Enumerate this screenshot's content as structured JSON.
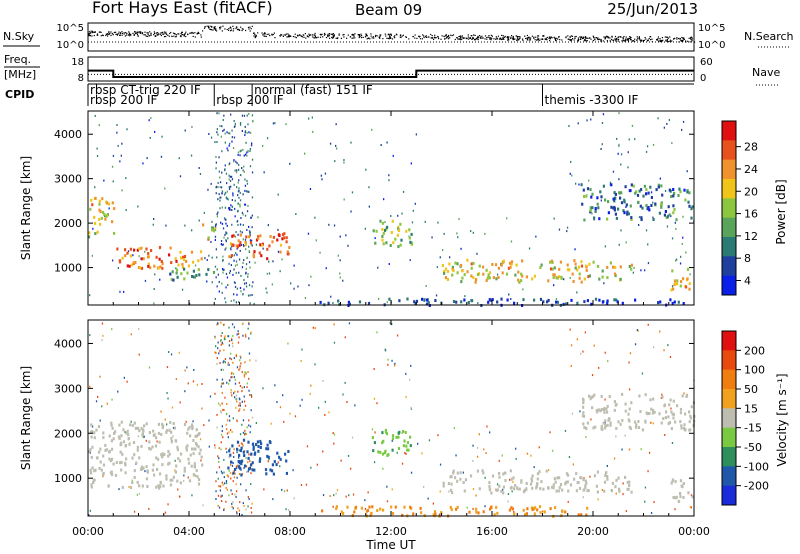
{
  "header": {
    "station": "Fort Hays East (fitACF)",
    "beam": "Beam 09",
    "date": "25/Jun/2013"
  },
  "summary_panel": {
    "nsky_label": "N.Sky",
    "nsky_ticks": [
      "10^5",
      "10^0"
    ],
    "nsearch_label": "N.Search",
    "nsearch_ticks": [
      "10^5",
      "10^0"
    ],
    "freq_label": "Freq.",
    "freq_unit": "[MHz]",
    "freq_ticks": [
      "18",
      "8"
    ],
    "nave_label": "Nave",
    "nave_ticks": [
      "60",
      "0"
    ],
    "cpid_label": "CPID",
    "cpid_entries": [
      {
        "t": 0.0,
        "row": 0,
        "text": "rbsp CT-trig 220 IF"
      },
      {
        "t": 0.0,
        "row": 1,
        "text": "rbsp 200 IF"
      },
      {
        "t": 5.0,
        "row": 1,
        "text": "rbsp 200 IF"
      },
      {
        "t": 6.5,
        "row": 0,
        "text": "normal (fast) 151 IF"
      },
      {
        "t": 18.0,
        "row": 1,
        "text": "themis -3300 IF"
      }
    ]
  },
  "panels": [
    {
      "ylabel": "Slant Range [km]",
      "yticks": [
        "4000",
        "3000",
        "2000",
        "1000"
      ],
      "colorbar_label": "Power [dB]",
      "colorbar_ticks": [
        "28",
        "24",
        "20",
        "16",
        "12",
        "8",
        "4"
      ]
    },
    {
      "ylabel": "Slant Range [km]",
      "yticks": [
        "4000",
        "3000",
        "2000",
        "1000"
      ],
      "colorbar_label": "Velocity [m s⁻¹]",
      "colorbar_ticks": [
        "200",
        "100",
        "50",
        "15",
        "-15",
        "-50",
        "-100",
        "-200"
      ]
    }
  ],
  "xaxis": {
    "label": "Time UT",
    "ticks": [
      "00:00",
      "04:00",
      "08:00",
      "12:00",
      "16:00",
      "20:00",
      "00:00"
    ]
  },
  "colors": {
    "power_scale": [
      "#0a1fe8",
      "#1e3f9e",
      "#2b7a73",
      "#5aa35a",
      "#8cc63f",
      "#f0c419",
      "#f0922e",
      "#e8501e",
      "#e01010"
    ],
    "velocity_scale": [
      "#1a2bd9",
      "#1f58a8",
      "#2f8f5c",
      "#7ac943",
      "#bdbdb0",
      "#f0a21e",
      "#f07d10",
      "#e84a0e",
      "#e01010"
    ]
  },
  "chart_data": {
    "type": "heatmap",
    "title": "Fort Hays East (fitACF)",
    "subtitle": "Beam 09 25/Jun/2013",
    "xlabel": "Time UT",
    "ylabel": "Slant Range [km]",
    "x_range_hours": [
      0,
      24
    ],
    "y_range_km": [
      180,
      4500
    ],
    "frequency_mhz": [
      {
        "from": 0.0,
        "to": 1.0,
        "value": 14.5
      },
      {
        "from": 1.0,
        "to": 13.0,
        "value": 10.5
      },
      {
        "from": 13.0,
        "to": 24.0,
        "value": 14.5
      }
    ],
    "nave_level": 1.5,
    "power_regions": [
      {
        "t0": 0.0,
        "t1": 1.0,
        "r0": 1700,
        "r1": 2600,
        "level": 20
      },
      {
        "t0": 1.0,
        "t1": 4.5,
        "r0": 1000,
        "r1": 1500,
        "level": 24
      },
      {
        "t0": 4.5,
        "t1": 5.0,
        "r0": 1600,
        "r1": 2000,
        "level": 20
      },
      {
        "t0": 5.5,
        "t1": 8.0,
        "r0": 1200,
        "r1": 1800,
        "level": 26
      },
      {
        "t0": 3.0,
        "t1": 5.0,
        "r0": 700,
        "r1": 1000,
        "level": 12
      },
      {
        "t0": 11.2,
        "t1": 12.8,
        "r0": 1500,
        "r1": 2100,
        "level": 16
      },
      {
        "t0": 14.0,
        "t1": 21.5,
        "r0": 700,
        "r1": 1200,
        "level": 20
      },
      {
        "t0": 19.5,
        "t1": 24.0,
        "r0": 2100,
        "r1": 2900,
        "level": 10
      },
      {
        "t0": 23.0,
        "t1": 24.0,
        "r0": 500,
        "r1": 1000,
        "level": 22
      },
      {
        "t0": 9.0,
        "t1": 24.0,
        "r0": 180,
        "r1": 330,
        "level": 6
      }
    ],
    "velocity_regions": [
      {
        "t0": 0.0,
        "t1": 4.5,
        "r0": 800,
        "r1": 2300,
        "value": 0
      },
      {
        "t0": 5.5,
        "t1": 8.0,
        "r0": 1100,
        "r1": 1900,
        "value": 120
      },
      {
        "t0": 11.2,
        "t1": 12.8,
        "r0": 1500,
        "r1": 2100,
        "value": 40
      },
      {
        "t0": 14.0,
        "t1": 21.5,
        "r0": 700,
        "r1": 1200,
        "value": 0
      },
      {
        "t0": 19.5,
        "t1": 24.0,
        "r0": 2100,
        "r1": 2900,
        "value": 0
      },
      {
        "t0": 23.0,
        "t1": 24.0,
        "r0": 500,
        "r1": 1000,
        "value": 0
      },
      {
        "t0": 9.0,
        "t1": 20.0,
        "r0": 180,
        "r1": 400,
        "value": -50
      }
    ]
  }
}
